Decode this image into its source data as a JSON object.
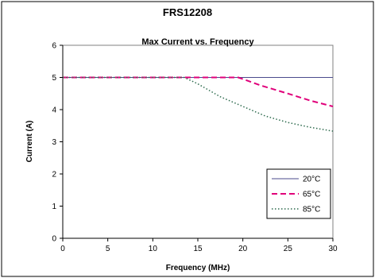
{
  "chart_data": {
    "type": "line",
    "title": "FRS12208",
    "subtitle": "Max Current vs. Frequency",
    "xlabel": "Frequency (MHz)",
    "ylabel": "Current (A)",
    "xlim": [
      0,
      30
    ],
    "ylim": [
      0,
      6
    ],
    "xticks": [
      0,
      5,
      10,
      15,
      20,
      25,
      30
    ],
    "yticks": [
      0,
      1,
      2,
      3,
      4,
      5,
      6
    ],
    "grid": false,
    "legend_position": "bottom-right",
    "series": [
      {
        "name": "20°C",
        "color": "#4b4b8c",
        "style": "solid",
        "x": [
          0,
          30
        ],
        "y": [
          5,
          5
        ]
      },
      {
        "name": "65°C",
        "color": "#e0007a",
        "style": "dashed",
        "x": [
          0,
          5,
          10,
          15,
          19.5,
          22,
          25,
          27.5,
          30
        ],
        "y": [
          5,
          5,
          5,
          5,
          5,
          4.75,
          4.5,
          4.28,
          4.1
        ]
      },
      {
        "name": "85°C",
        "color": "#2e6b4e",
        "style": "dotted",
        "x": [
          0,
          5,
          10,
          13.5,
          15,
          17.5,
          20,
          22.5,
          25,
          27.5,
          30
        ],
        "y": [
          5,
          5,
          5,
          5,
          4.8,
          4.4,
          4.1,
          3.8,
          3.6,
          3.45,
          3.33
        ]
      }
    ]
  }
}
